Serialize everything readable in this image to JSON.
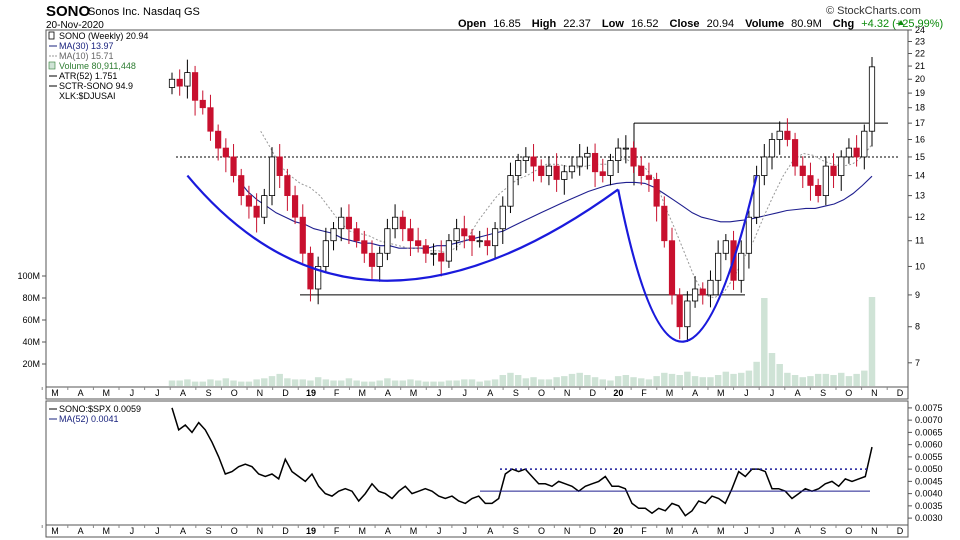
{
  "header": {
    "ticker": "SONO",
    "company": "Sonos Inc. Nasdaq GS",
    "date": "20-Nov-2020",
    "brand": "© StockCharts.com",
    "open_label": "Open",
    "open": "16.85",
    "high_label": "High",
    "high": "22.37",
    "low_label": "Low",
    "low": "16.52",
    "close_label": "Close",
    "close": "20.94",
    "volume_label": "Volume",
    "volume": "80.9M",
    "chg_label": "Chg",
    "chg": "+4.32 (+25.99%)"
  },
  "legend_main": [
    {
      "text": "SONO (Weekly) 20.94",
      "style": "black"
    },
    {
      "text": "MA(30) 13.97",
      "style": "blue"
    },
    {
      "text": "MA(10) 15.71",
      "style": "grey"
    },
    {
      "text": "Volume 80,911,448",
      "style": "green"
    },
    {
      "text": "ATR(52) 1.751",
      "style": "black"
    },
    {
      "text": "SCTR-SONO 94.9",
      "style": "black"
    },
    {
      "text": "XLK:$DJUSAI",
      "style": "black"
    }
  ],
  "legend_lower": [
    {
      "text": "SONO:$SPX 0.0059",
      "style": "black"
    },
    {
      "text": "MA(52) 0.0041",
      "style": "blue"
    }
  ],
  "colors": {
    "up": "#ffffff",
    "down": "#c8102e",
    "candle_edge": "#000000",
    "ma30": "#1f1f8f",
    "ma10": "#999999",
    "volume": "#cfe3d6",
    "pattern": "#1a1adc",
    "ratio": "#000000",
    "ratio_ma": "#1f1f8f",
    "dotted": "#1a1a9a"
  },
  "chart_data": [
    {
      "type": "candlestick",
      "title": "SONO (Weekly)",
      "ylim": [
        6.4,
        24
      ],
      "price_ticks": [
        7,
        8,
        9,
        10,
        11,
        12,
        13,
        14,
        15,
        16,
        17,
        18,
        19,
        20,
        21,
        22,
        23,
        24
      ],
      "volume_ticks": [
        "20M",
        "40M",
        "60M",
        "80M",
        "100M"
      ],
      "volume_tick_values": [
        20,
        40,
        60,
        80,
        100
      ],
      "x_labels": [
        "M",
        "A",
        "M",
        "J",
        "J",
        "A",
        "S",
        "O",
        "N",
        "D",
        "19",
        "F",
        "M",
        "A",
        "M",
        "J",
        "J",
        "A",
        "S",
        "O",
        "N",
        "D",
        "20",
        "F",
        "M",
        "A",
        "M",
        "J",
        "J",
        "A",
        "S",
        "O",
        "N",
        "D"
      ],
      "bold_x_labels": [
        "19",
        "20"
      ],
      "close": [
        20.0,
        19.5,
        20.5,
        18.5,
        18.0,
        16.5,
        15.5,
        15.0,
        14.0,
        13.0,
        12.5,
        12.0,
        13.0,
        15.0,
        14.0,
        13.0,
        12.0,
        10.5,
        9.2,
        10.0,
        11.0,
        11.5,
        12.0,
        11.5,
        11.0,
        10.5,
        10.0,
        10.5,
        11.5,
        12.0,
        11.5,
        11.0,
        10.8,
        10.5,
        10.5,
        10.2,
        11.0,
        11.5,
        11.2,
        11.0,
        11.0,
        10.8,
        11.5,
        12.5,
        14.0,
        14.8,
        15.0,
        14.5,
        14.0,
        14.5,
        13.8,
        14.2,
        14.5,
        15.0,
        15.2,
        14.2,
        14.0,
        14.8,
        15.5,
        15.5,
        14.5,
        14.0,
        13.8,
        12.5,
        11.0,
        9.0,
        8.0,
        8.8,
        9.2,
        9.0,
        9.5,
        10.5,
        11.0,
        9.5,
        10.5,
        12.0,
        14.0,
        15.0,
        16.0,
        16.5,
        16.0,
        14.5,
        14.0,
        13.5,
        13.0,
        14.5,
        14.0,
        15.0,
        15.5,
        15.0,
        16.5,
        20.94
      ],
      "volume_millions": [
        5,
        5,
        6,
        4,
        4,
        6,
        5,
        7,
        5,
        4,
        4,
        6,
        7,
        9,
        11,
        7,
        6,
        6,
        5,
        8,
        6,
        5,
        5,
        7,
        5,
        4,
        4,
        5,
        7,
        5,
        5,
        6,
        5,
        4,
        4,
        4,
        5,
        5,
        6,
        6,
        4,
        5,
        6,
        10,
        12,
        10,
        7,
        8,
        6,
        6,
        8,
        9,
        11,
        12,
        10,
        8,
        6,
        5,
        9,
        10,
        8,
        7,
        6,
        9,
        12,
        11,
        10,
        13,
        9,
        8,
        8,
        10,
        13,
        11,
        12,
        14,
        22,
        80,
        30,
        20,
        12,
        10,
        8,
        9,
        11,
        11,
        10,
        12,
        9,
        11,
        14,
        80.9
      ],
      "ma30": [
        null,
        null,
        null,
        null,
        null,
        null,
        null,
        13.8,
        13.2,
        12.8,
        12.5,
        12.2,
        12.0,
        11.8,
        11.7,
        11.5,
        11.4,
        11.3,
        11.1,
        11.0,
        10.9,
        10.9,
        10.8,
        10.8,
        10.7,
        10.7,
        10.7,
        10.7,
        10.8,
        10.8,
        10.9,
        11.0,
        11.1,
        11.2,
        11.3,
        11.4,
        11.6,
        11.8,
        12.0,
        12.2,
        12.4,
        12.6,
        12.8,
        13.0,
        13.2,
        13.35,
        13.5,
        13.6,
        13.65,
        13.65,
        13.6,
        13.4,
        13.1,
        12.8,
        12.5,
        12.2,
        12.0,
        11.9,
        11.8,
        11.8,
        11.85,
        11.9,
        12.0,
        12.1,
        12.2,
        12.3,
        12.35,
        12.4,
        12.4,
        12.5,
        12.6,
        12.8,
        13.1,
        13.5,
        13.97
      ],
      "ma10": [
        null,
        null,
        null,
        null,
        null,
        null,
        null,
        null,
        null,
        16.5,
        15.5,
        14.5,
        14.0,
        13.6,
        13.4,
        13.0,
        12.4,
        11.8,
        11.4,
        11.3,
        11.2,
        11.0,
        10.9,
        10.8,
        10.7,
        10.7,
        10.6,
        10.6,
        10.5,
        10.8,
        11.1,
        11.8,
        12.4,
        13.0,
        13.4,
        13.8,
        14.0,
        14.3,
        14.6,
        14.6,
        14.5,
        14.4,
        14.5,
        14.6,
        14.6,
        14.8,
        14.9,
        14.6,
        14.4,
        13.8,
        12.5,
        11.5,
        10.5,
        9.6,
        9.0,
        8.9,
        9.1,
        9.6,
        10.3,
        11.0,
        12.0,
        13.0,
        14.0,
        14.8,
        15.2,
        15.1,
        14.8,
        14.6,
        14.5,
        14.6,
        15.0,
        15.71
      ],
      "annotations": {
        "support_level": 9,
        "pivot_level": 15,
        "breakout_level": 17,
        "resistance_level_dotted": 15
      }
    },
    {
      "type": "line",
      "title": "SONO:$SPX",
      "ylim": [
        0.0028,
        0.0077
      ],
      "ticks": [
        0.003,
        0.0035,
        0.004,
        0.0045,
        0.005,
        0.0055,
        0.006,
        0.0065,
        0.007,
        0.0075
      ],
      "tick_labels": [
        "0.0030",
        "0.0035",
        "0.0040",
        "0.0045",
        "0.0050",
        "0.0055",
        "0.0060",
        "0.0065",
        "0.0070",
        "0.0075"
      ],
      "values": [
        0.0075,
        0.0066,
        0.0068,
        0.0065,
        0.0069,
        0.0066,
        0.0061,
        0.0055,
        0.0048,
        0.0049,
        0.0051,
        0.0052,
        0.0051,
        0.0048,
        0.0047,
        0.0048,
        0.0046,
        0.0054,
        0.0049,
        0.0047,
        0.0045,
        0.0048,
        0.0043,
        0.004,
        0.0039,
        0.0041,
        0.0042,
        0.0041,
        0.0037,
        0.004,
        0.0044,
        0.0041,
        0.004,
        0.0038,
        0.0041,
        0.0043,
        0.004,
        0.0041,
        0.0042,
        0.0041,
        0.0039,
        0.0038,
        0.0039,
        0.0037,
        0.0036,
        0.0038,
        0.0039,
        0.0036,
        0.0036,
        0.0038,
        0.0048,
        0.005,
        0.0049,
        0.005,
        0.0047,
        0.0044,
        0.0044,
        0.0043,
        0.0045,
        0.0044,
        0.0043,
        0.0041,
        0.0043,
        0.0044,
        0.0045,
        0.0047,
        0.0043,
        0.0043,
        0.0042,
        0.0036,
        0.0034,
        0.0034,
        0.0032,
        0.0034,
        0.0033,
        0.0036,
        0.0035,
        0.0031,
        0.0033,
        0.0037,
        0.0036,
        0.0039,
        0.0038,
        0.0036,
        0.0042,
        0.0049,
        0.0047,
        0.005,
        0.005,
        0.0049,
        0.0042,
        0.0042,
        0.0041,
        0.0038,
        0.004,
        0.0042,
        0.0041,
        0.0042,
        0.0044,
        0.0045,
        0.0043,
        0.0046,
        0.0045,
        0.0046,
        0.0047,
        0.0059
      ],
      "ma52_level": 0.0041,
      "dotted_level": 0.005
    }
  ]
}
